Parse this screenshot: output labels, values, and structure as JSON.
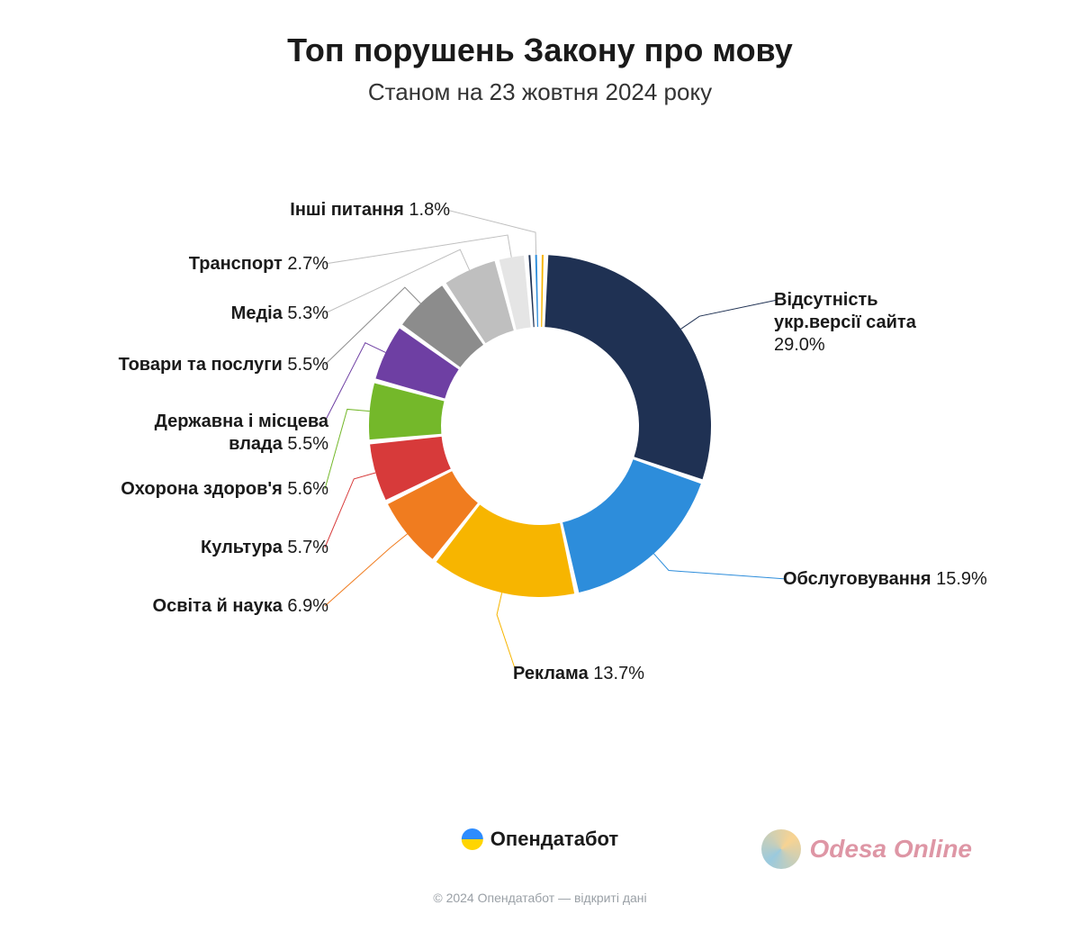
{
  "title": "Топ порушень Закону про мову",
  "subtitle": "Станом на 23 жовтня 2024 року",
  "chart": {
    "type": "donut",
    "inner_radius": 110,
    "outer_radius": 190,
    "gap_deg": 1.6,
    "background_color": "#ffffff",
    "start_angle_deg": 2,
    "label_fontsize": 20,
    "label_name_weight": 700,
    "label_pct_weight": 400,
    "leader_color_matches_slice": true,
    "slices": [
      {
        "name": "Відсутність укр.версії сайта",
        "value": 29.0,
        "color": "#1f3153",
        "label_side": "right",
        "multiline": true
      },
      {
        "name": "Обслуговування",
        "value": 15.9,
        "color": "#2d8ddb",
        "label_side": "right"
      },
      {
        "name": "Реклама",
        "value": 13.7,
        "color": "#f7b500",
        "label_side": "bottom"
      },
      {
        "name": "Освіта й наука",
        "value": 6.9,
        "color": "#f07c1f",
        "label_side": "left"
      },
      {
        "name": "Культура",
        "value": 5.7,
        "color": "#d73a3a",
        "label_side": "left"
      },
      {
        "name": "Охорона здоров'я",
        "value": 5.6,
        "color": "#74b82a",
        "label_side": "left"
      },
      {
        "name": "Державна і місцева влада",
        "value": 5.5,
        "color": "#6e3fa3",
        "label_side": "left",
        "multiline": true
      },
      {
        "name": "Товари та послуги",
        "value": 5.5,
        "color": "#8c8c8c",
        "label_side": "left"
      },
      {
        "name": "Медіа",
        "value": 5.3,
        "color": "#bfbfbf",
        "label_side": "left"
      },
      {
        "name": "Транспорт",
        "value": 2.7,
        "color": "#e5e5e5",
        "label_side": "left"
      },
      {
        "name": "Інші питання",
        "value": 1.8,
        "color": "#ffffff",
        "label_side": "top",
        "last_colors": [
          "#1f3153",
          "#2d8ddb",
          "#f7b500"
        ]
      }
    ]
  },
  "brand": {
    "name": "Опендатабот"
  },
  "watermark": {
    "text": "Odesa Online"
  },
  "copyright": "© 2024 Опендатабот — відкриті дані"
}
